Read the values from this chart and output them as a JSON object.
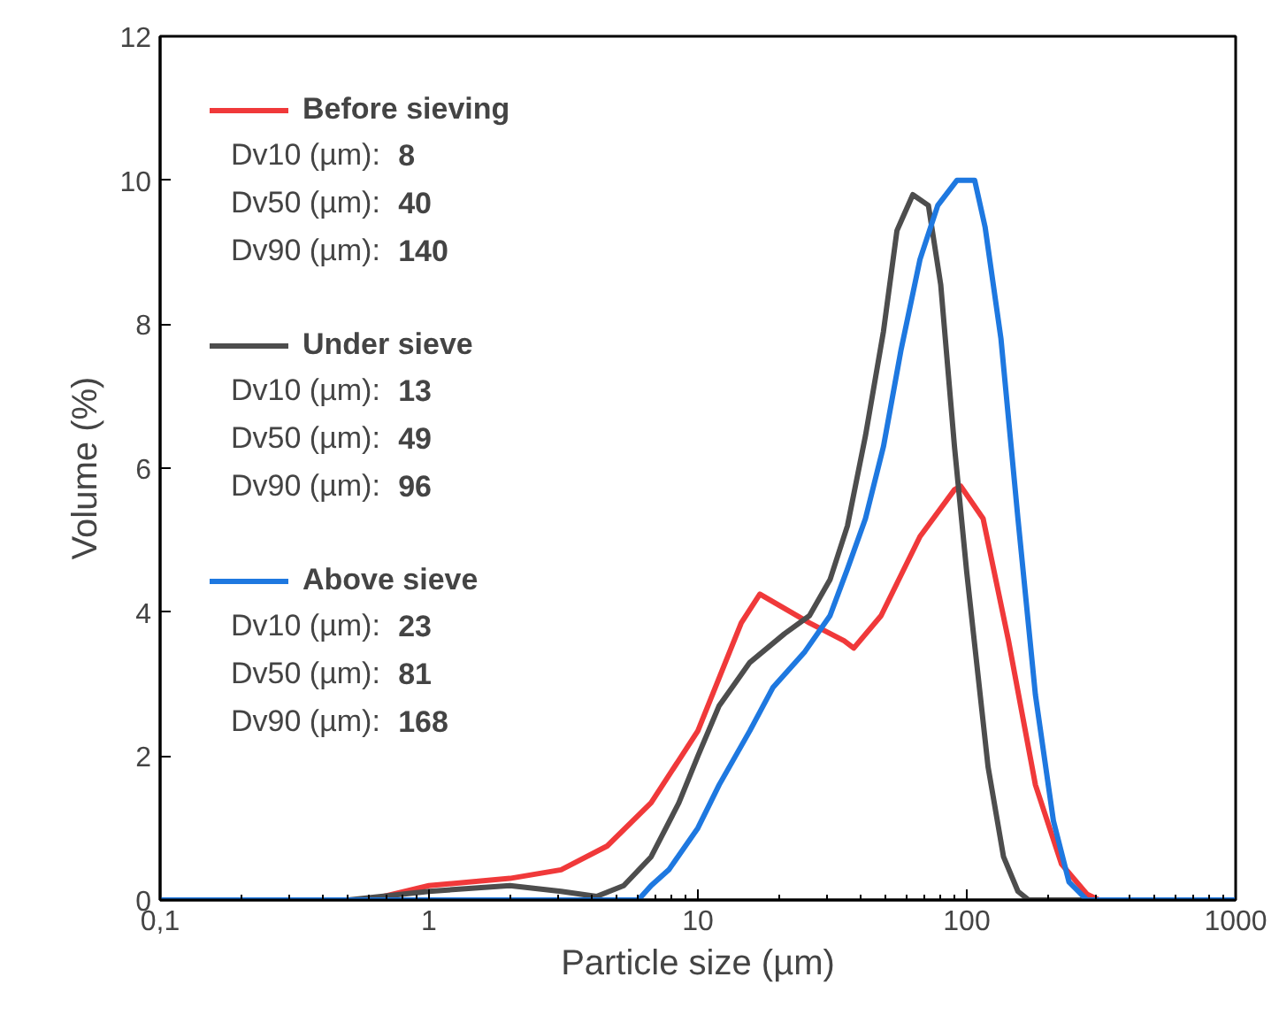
{
  "chart_data": {
    "type": "line",
    "xlabel": "Particle size (µm)",
    "ylabel": "Volume (%)",
    "log": "x",
    "grid": false,
    "legend": "top left",
    "line_style": "solid",
    "marker": "none",
    "xlim": [
      0.1,
      1000
    ],
    "xticks": [
      {
        "value": 0.1,
        "label": "0,1"
      },
      1,
      10,
      100,
      1000
    ],
    "ylim": [
      0,
      12
    ],
    "yticks": [
      0,
      2,
      4,
      6,
      8,
      10,
      12
    ],
    "series": [
      {
        "name": "Before sieving",
        "color": "#f0393a",
        "x": [
          0.1,
          0.6,
          1,
          2,
          3.1,
          4.6,
          6.7,
          10,
          14.5,
          17,
          26,
          35,
          38,
          48,
          67,
          90,
          95,
          115,
          143,
          180,
          225,
          280,
          310,
          1000
        ],
        "values": [
          0,
          0,
          0.2,
          0.3,
          0.42,
          0.75,
          1.35,
          2.35,
          3.85,
          4.25,
          3.85,
          3.6,
          3.5,
          3.95,
          5.05,
          5.7,
          5.75,
          5.3,
          3.6,
          1.6,
          0.5,
          0.08,
          0,
          0
        ]
      },
      {
        "name": "Under sieve",
        "color": "#4d4d4d",
        "x": [
          0.1,
          0.5,
          1,
          2,
          3.1,
          4.2,
          5.3,
          6.7,
          8.5,
          10,
          12,
          15.6,
          21,
          26,
          31,
          36,
          42,
          49,
          55,
          63,
          72,
          80,
          90,
          100,
          120,
          137,
          155,
          170,
          1000
        ],
        "values": [
          0,
          0,
          0.12,
          0.2,
          0.12,
          0.05,
          0.2,
          0.6,
          1.35,
          2.0,
          2.7,
          3.3,
          3.7,
          3.95,
          4.45,
          5.2,
          6.45,
          7.9,
          9.3,
          9.8,
          9.65,
          8.55,
          6.3,
          4.55,
          1.85,
          0.6,
          0.12,
          0,
          0
        ]
      },
      {
        "name": "Above sieve",
        "color": "#1e78e0",
        "x": [
          0.1,
          6,
          6.7,
          7.8,
          10,
          12,
          15.6,
          19,
          25,
          31,
          36,
          42,
          49,
          57,
          67,
          78,
          92,
          107,
          117,
          134,
          155,
          180,
          210,
          240,
          280,
          1000
        ],
        "values": [
          0,
          0,
          0.2,
          0.42,
          1.0,
          1.6,
          2.35,
          2.95,
          3.45,
          3.95,
          4.6,
          5.3,
          6.3,
          7.65,
          8.9,
          9.65,
          10,
          10,
          9.35,
          7.8,
          5.3,
          2.85,
          1.1,
          0.25,
          0,
          0
        ]
      }
    ],
    "annotations": [
      "Dv10 (µm): 8",
      "Dv50 (µm): 40",
      "Dv90 (µm): 140",
      "Dv10 (µm): 13",
      "Dv50 (µm): 49",
      "Dv90 (µm): 96",
      "Dv10 (µm): 23",
      "Dv50 (µm): 81",
      "Dv90 (µm): 168"
    ]
  }
}
